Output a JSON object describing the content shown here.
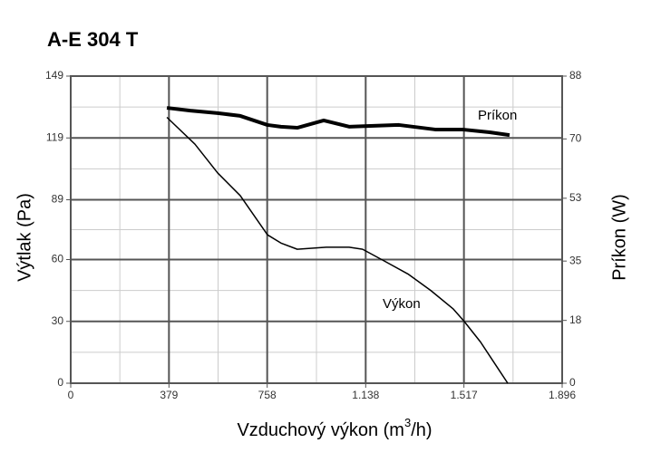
{
  "chart_data": {
    "type": "line",
    "title": "A-E 304 T",
    "xlabel": [
      "Vzduchový výkon (m",
      "3",
      "/h)"
    ],
    "ylabel": "Výtlak (Pa)",
    "y2label": "Príkon (W)",
    "xlim": [
      0,
      1896
    ],
    "xticks": [
      0,
      379,
      758,
      {
        "value": 1138,
        "label": "1.138"
      },
      {
        "value": 1517,
        "label": "1.517"
      },
      {
        "value": 1896,
        "label": "1.896"
      }
    ],
    "ylim": [
      0,
      149
    ],
    "yticks": [
      0,
      30,
      60,
      89,
      119,
      149
    ],
    "y2lim": [
      0,
      88
    ],
    "y2ticks": [
      0,
      18,
      35,
      53,
      70,
      88
    ],
    "grid": true,
    "minor_grid": true,
    "series": [
      {
        "name": "Výkon",
        "color": "#000000",
        "width": 1.5,
        "x": [
          371,
          479,
          567,
          654,
          759,
          811,
          874,
          986,
          1074,
          1126,
          1214,
          1301,
          1389,
          1476,
          1518,
          1581,
          1644,
          1686
        ],
        "values": [
          129,
          116,
          102,
          91,
          72,
          68,
          65,
          66,
          66,
          65,
          59,
          53,
          45,
          36,
          30,
          20,
          8,
          0
        ]
      },
      {
        "name": "Príkon",
        "color": "#000000",
        "width": 4,
        "axis": "y2",
        "x": [
          371,
          462,
          567,
          654,
          759,
          811,
          874,
          976,
          1074,
          1144,
          1266,
          1406,
          1511,
          1616,
          1693
        ],
        "values": [
          78.9,
          78.1,
          77.4,
          76.6,
          74.0,
          73.5,
          73.2,
          75.3,
          73.5,
          73.7,
          74.0,
          72.7,
          72.7,
          71.9,
          71.1
        ]
      }
    ]
  }
}
